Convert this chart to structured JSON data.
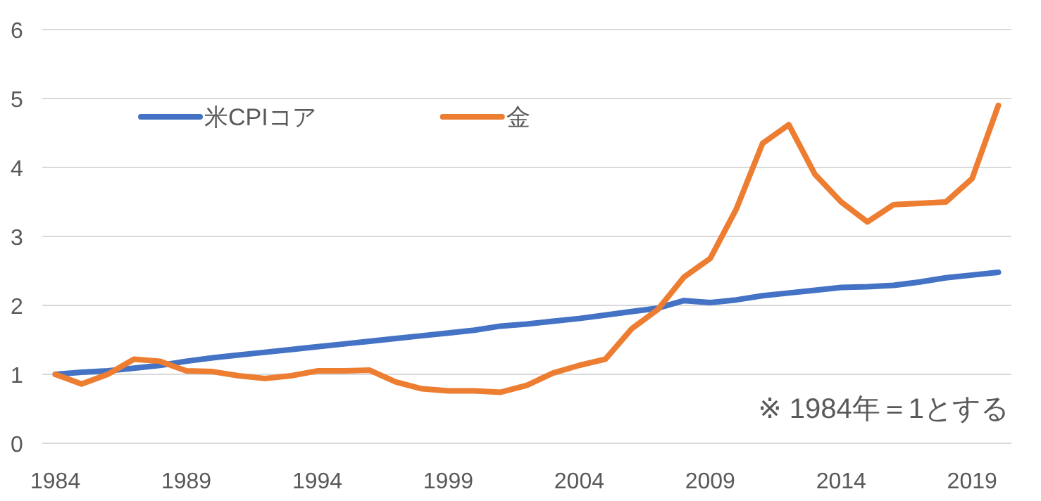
{
  "chart_data": {
    "type": "line",
    "categories": [
      "1984",
      null,
      null,
      null,
      null,
      "1989",
      null,
      null,
      null,
      null,
      "1994",
      null,
      null,
      null,
      null,
      "1999",
      null,
      null,
      null,
      null,
      "2004",
      null,
      null,
      null,
      null,
      "2009",
      null,
      null,
      null,
      null,
      "2014",
      null,
      null,
      null,
      null,
      "2019",
      null
    ],
    "series": [
      {
        "name": "米CPIコア",
        "color": "#4472c4",
        "values": [
          1.0,
          1.03,
          1.05,
          1.09,
          1.13,
          1.19,
          1.24,
          1.28,
          1.32,
          1.36,
          1.4,
          1.44,
          1.48,
          1.52,
          1.56,
          1.6,
          1.64,
          1.7,
          1.73,
          1.77,
          1.81,
          1.86,
          1.91,
          1.96,
          2.07,
          2.04,
          2.08,
          2.14,
          2.18,
          2.22,
          2.26,
          2.27,
          2.29,
          2.34,
          2.4,
          2.44,
          2.48
        ]
      },
      {
        "name": "金",
        "color": "#ed7d31",
        "values": [
          1.0,
          0.86,
          1.0,
          1.22,
          1.19,
          1.05,
          1.04,
          0.98,
          0.94,
          0.98,
          1.05,
          1.05,
          1.06,
          0.89,
          0.79,
          0.76,
          0.76,
          0.74,
          0.84,
          1.02,
          1.13,
          1.22,
          1.66,
          1.94,
          2.41,
          2.68,
          3.4,
          4.35,
          4.62,
          3.9,
          3.5,
          3.21,
          3.46,
          3.48,
          3.5,
          3.84,
          4.9
        ]
      }
    ],
    "ylim": [
      0,
      6
    ],
    "yticks": [
      0,
      1,
      2,
      3,
      4,
      5,
      6
    ],
    "grid": "y",
    "legend": "top",
    "annotations": [
      "※ 1984年＝1とする"
    ]
  }
}
